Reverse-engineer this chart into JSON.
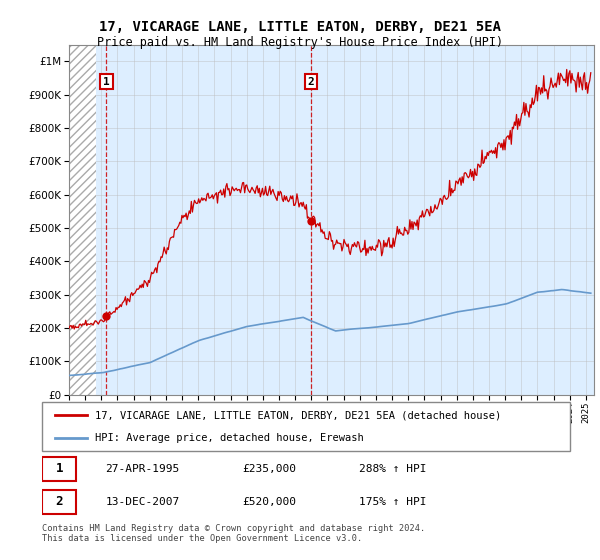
{
  "title": "17, VICARAGE LANE, LITTLE EATON, DERBY, DE21 5EA",
  "subtitle": "Price paid vs. HM Land Registry's House Price Index (HPI)",
  "legend_line1": "17, VICARAGE LANE, LITTLE EATON, DERBY, DE21 5EA (detached house)",
  "legend_line2": "HPI: Average price, detached house, Erewash",
  "sale1_date": "27-APR-1995",
  "sale1_price": 235000,
  "sale1_label": "288% ↑ HPI",
  "sale2_date": "13-DEC-2007",
  "sale2_price": 520000,
  "sale2_label": "175% ↑ HPI",
  "footnote": "Contains HM Land Registry data © Crown copyright and database right 2024.\nThis data is licensed under the Open Government Licence v3.0.",
  "hpi_color": "#6699cc",
  "price_color": "#cc0000",
  "sale1_x": 1995.32,
  "sale2_x": 2007.96,
  "ylim_min": 0,
  "ylim_max": 1050000,
  "xlim_min": 1993.0,
  "xlim_max": 2025.5,
  "bg_color": "#ddeeff",
  "hatch_end": 1994.67
}
